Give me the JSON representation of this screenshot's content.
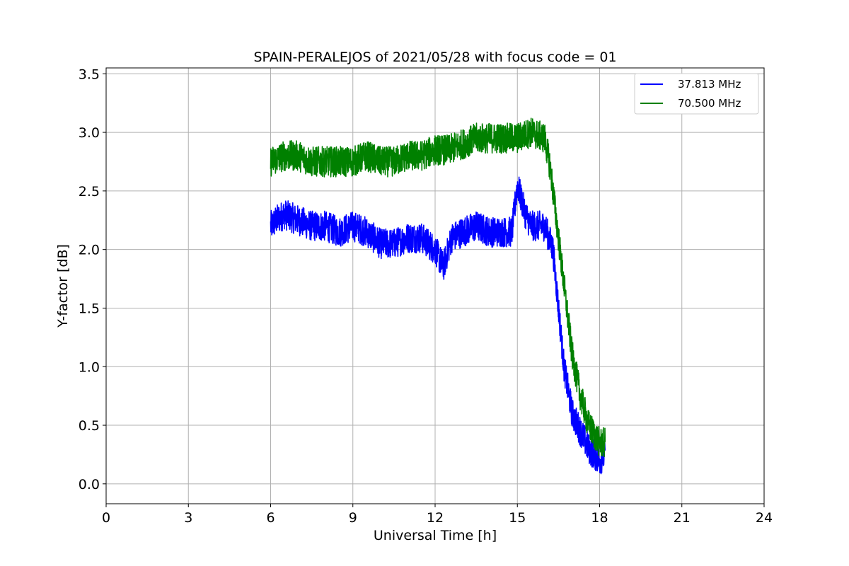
{
  "chart_data": {
    "type": "line",
    "title": "SPAIN-PERALEJOS of 2021/05/28 with focus code = 01",
    "xlabel": "Universal Time [h]",
    "ylabel": "Y-factor [dB]",
    "xlim": [
      0,
      24
    ],
    "ylim": [
      -0.17,
      3.55
    ],
    "xticks": [
      "0",
      "3",
      "6",
      "9",
      "12",
      "15",
      "18",
      "21",
      "24"
    ],
    "yticks": [
      "0.0",
      "0.5",
      "1.0",
      "1.5",
      "2.0",
      "2.5",
      "3.0",
      "3.5"
    ],
    "grid": true,
    "legend_position": "top-right",
    "series": [
      {
        "name": "37.813 MHz",
        "color": "#0000ff",
        "noise": 0.13,
        "x": [
          6.0,
          6.2,
          6.5,
          7.0,
          7.5,
          8.0,
          8.5,
          9.0,
          9.5,
          10.0,
          10.5,
          11.0,
          11.5,
          12.0,
          12.3,
          12.6,
          13.0,
          13.5,
          14.0,
          14.5,
          14.8,
          15.0,
          15.3,
          15.5,
          16.0,
          16.3,
          16.5,
          16.7,
          17.0,
          17.3,
          17.6,
          18.0,
          18.2
        ],
        "y": [
          2.2,
          2.25,
          2.3,
          2.25,
          2.2,
          2.2,
          2.15,
          2.2,
          2.15,
          2.05,
          2.05,
          2.1,
          2.1,
          2.0,
          1.85,
          2.1,
          2.15,
          2.2,
          2.15,
          2.15,
          2.15,
          2.55,
          2.3,
          2.2,
          2.2,
          2.0,
          1.5,
          1.0,
          0.6,
          0.45,
          0.3,
          0.2,
          0.25
        ]
      },
      {
        "name": "70.500 MHz",
        "color": "#008000",
        "noise": 0.13,
        "x": [
          6.0,
          6.5,
          7.0,
          7.5,
          8.0,
          8.5,
          9.0,
          9.5,
          10.0,
          10.5,
          11.0,
          11.5,
          12.0,
          12.5,
          13.0,
          13.5,
          14.0,
          14.5,
          15.0,
          15.5,
          16.0,
          16.2,
          16.4,
          16.7,
          17.0,
          17.3,
          17.6,
          18.0,
          18.2
        ],
        "y": [
          2.75,
          2.8,
          2.8,
          2.75,
          2.75,
          2.75,
          2.75,
          2.8,
          2.75,
          2.75,
          2.8,
          2.8,
          2.85,
          2.85,
          2.9,
          2.95,
          2.95,
          2.95,
          2.95,
          3.0,
          2.95,
          2.7,
          2.3,
          1.7,
          1.1,
          0.75,
          0.5,
          0.35,
          0.35
        ]
      }
    ]
  }
}
